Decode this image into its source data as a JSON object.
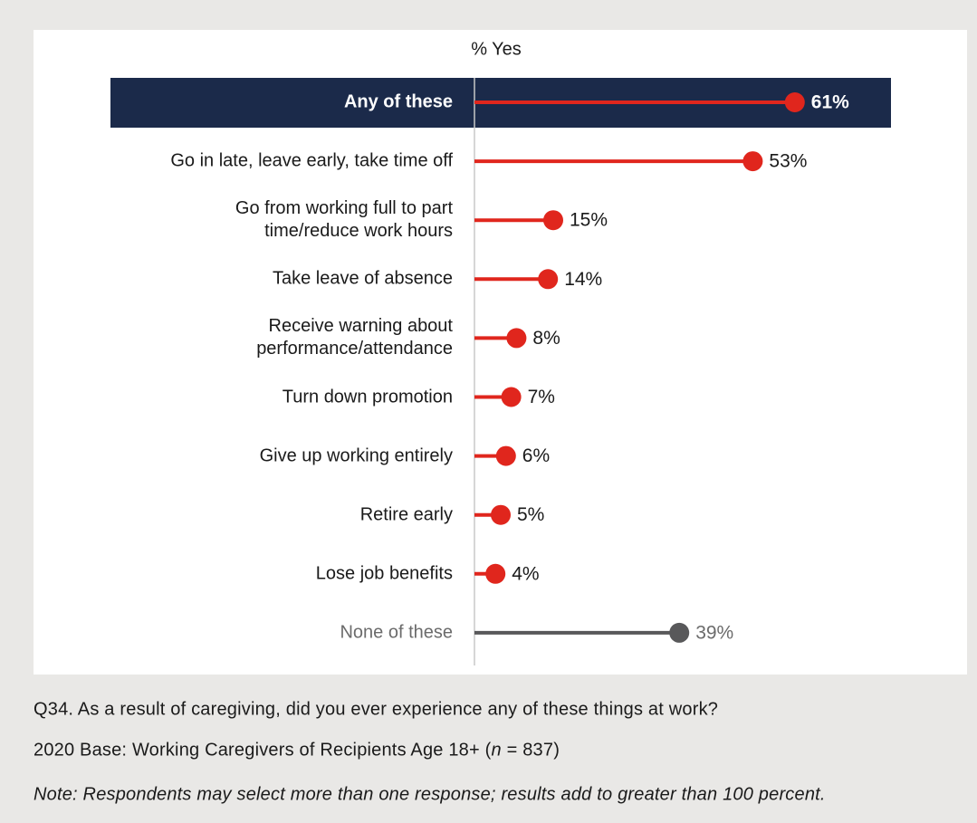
{
  "chart_data": {
    "type": "lollipop",
    "header": "% Yes",
    "categories": [
      "Any of these",
      "Go in late, leave early, take time off",
      "Go from working full to part\ntime/reduce work hours",
      "Take leave of absence",
      "Receive warning about\nperformance/attendance",
      "Turn down promotion",
      "Give up working entirely",
      "Retire early",
      "Lose job benefits",
      "None of these"
    ],
    "values": [
      61,
      53,
      15,
      14,
      8,
      7,
      6,
      5,
      4,
      39
    ],
    "value_labels": [
      "61%",
      "53%",
      "15%",
      "14%",
      "8%",
      "7%",
      "6%",
      "5%",
      "4%",
      "39%"
    ],
    "colors": [
      "#e0261d",
      "#e0261d",
      "#e0261d",
      "#e0261d",
      "#e0261d",
      "#e0261d",
      "#e0261d",
      "#e0261d",
      "#e0261d",
      "#58585a"
    ],
    "label_colors": [
      "#ffffff",
      "#1a1a1a",
      "#1a1a1a",
      "#1a1a1a",
      "#1a1a1a",
      "#1a1a1a",
      "#1a1a1a",
      "#1a1a1a",
      "#1a1a1a",
      "#6b6b6b"
    ],
    "highlight": 0,
    "highlight_color": "#1b2a4a"
  },
  "footnotes": {
    "question": "Q34.  As a result of caregiving, did you ever experience any of these things at work?",
    "base": [
      "2020 Base: Working Caregivers of Recipients Age 18+ (",
      "n",
      " = 837)"
    ],
    "note": "Note: Respondents may select more than one response; results add to greater than 100 percent."
  }
}
